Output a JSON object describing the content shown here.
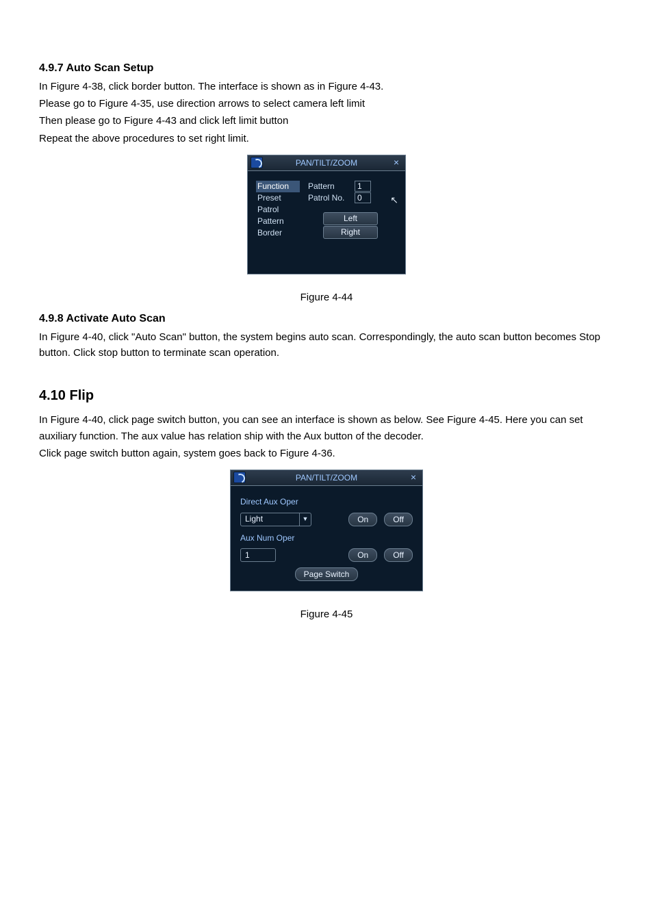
{
  "colors": {
    "page_bg": "#ffffff",
    "text": "#000000",
    "panel_bg": "#0b1a2a",
    "panel_border": "#6b7e90",
    "title_text": "#9fc8ff",
    "body_text": "#cfe0f2",
    "highlight_row": "#3b5678",
    "button_grad_top": "#3e4d5f",
    "button_grad_bottom": "#283644",
    "logo_bg": "#1b4aa0"
  },
  "typography": {
    "body_font": "Arial",
    "body_size_pt": 11,
    "h3_size_pt": 12,
    "h2_size_pt": 15
  },
  "sections": {
    "s497": {
      "title": "4.9.7 Auto Scan Setup",
      "p1": "In  Figure 4-38, click border button. The interface is shown as in  Figure 4-43.",
      "p2": "Please go to  Figure 4-35, use direction arrows to select camera left limit",
      "p3": "Then please go to  Figure 4-43 and click left limit button",
      "p4": "Repeat the above procedures to set right limit."
    },
    "cap44": "Figure 4-44",
    "s498": {
      "title": "4.9.8 Activate Auto Scan",
      "p1": "In Figure 4-40, click \"Auto Scan\" button, the system begins auto scan. Correspondingly, the auto scan button becomes Stop button. Click stop button to terminate scan operation."
    },
    "s410": {
      "title": "4.10 Flip",
      "p1": "In Figure 4-40, click page switch button, you can see an interface is shown as below. See Figure 4-45. Here you can set auxiliary function. The aux value has relation ship with the Aux button of the decoder.",
      "p2": "Click page switch button again, system goes back to Figure 4-36."
    },
    "cap45": "Figure 4-45"
  },
  "panel1": {
    "title": "PAN/TILT/ZOOM",
    "close_glyph": "×",
    "functions": [
      "Function",
      "Preset",
      "Patrol",
      "Pattern",
      "Border"
    ],
    "selected_index": 0,
    "labels": {
      "pattern": "Pattern",
      "patrol_no": "Patrol No."
    },
    "inputs": {
      "pattern_val": "1",
      "patrol_no_val": "0"
    },
    "buttons": {
      "left": "Left",
      "right": "Right"
    },
    "arrow_glyph": "↖"
  },
  "panel2": {
    "title": "PAN/TILT/ZOOM",
    "close_glyph": "×",
    "section1_label": "Direct Aux Oper",
    "select_value": "Light",
    "dd_glyph": "▼",
    "section2_label": "Aux Num Oper",
    "num_value": "1",
    "on_label": "On",
    "off_label": "Off",
    "page_switch": "Page Switch"
  }
}
